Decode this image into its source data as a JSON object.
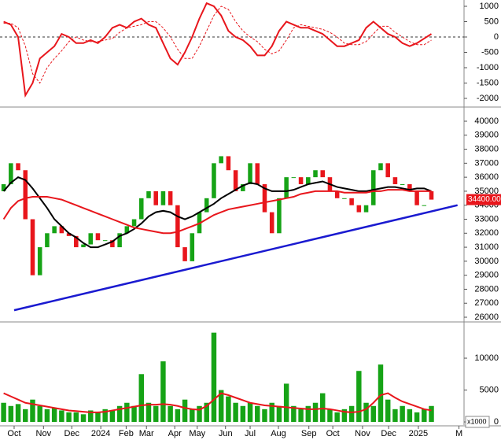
{
  "chart_data": [
    {
      "type": "line",
      "xlim": [
        -0.5,
        63.5
      ],
      "ylim": [
        -2256,
        1205
      ],
      "yticks": [
        1000,
        500,
        0,
        -500,
        -1000,
        -1500,
        -2000
      ],
      "zero_line": true,
      "series": [
        {
          "color": "#e8161c",
          "dash": false,
          "values": [
            500,
            400,
            0,
            -1900,
            -1500,
            -700,
            -500,
            -300,
            100,
            0,
            -200,
            -200,
            -100,
            -200,
            0,
            300,
            400,
            300,
            500,
            600,
            400,
            300,
            -200,
            -700,
            -900,
            -500,
            0,
            600,
            1100,
            1000,
            700,
            200,
            0,
            -100,
            -300,
            -600,
            -600,
            -300,
            200,
            500,
            400,
            300,
            300,
            200,
            100,
            -100,
            -300,
            -300,
            -200,
            -100,
            300,
            500,
            300,
            100,
            0,
            -200,
            -300,
            -200,
            -50,
            100
          ]
        },
        {
          "color": "#e8161c",
          "dash": true,
          "values": [
            450,
            450,
            300,
            -300,
            -1200,
            -1500,
            -1000,
            -700,
            -450,
            -150,
            0,
            -100,
            -150,
            -150,
            -100,
            -50,
            150,
            300,
            350,
            400,
            500,
            500,
            300,
            0,
            -400,
            -700,
            -700,
            -300,
            200,
            700,
            1000,
            900,
            500,
            200,
            0,
            -150,
            -400,
            -550,
            -450,
            -100,
            300,
            400,
            350,
            300,
            250,
            150,
            0,
            -200,
            -250,
            -250,
            -150,
            100,
            350,
            350,
            150,
            0,
            -150,
            -250,
            -250,
            -100
          ]
        }
      ]
    },
    {
      "type": "candlestick",
      "xlim": [
        -0.5,
        63.5
      ],
      "ylim": [
        25720,
        40955
      ],
      "yticks": [
        40000,
        39000,
        38000,
        37000,
        36000,
        35000,
        34000,
        33000,
        32000,
        31000,
        30000,
        29000,
        28000,
        27000,
        26000
      ],
      "up_color": "#16a316",
      "down_color": "#e8161c",
      "open": [
        35000,
        35500,
        37000,
        36500,
        33000,
        29000,
        31000,
        32000,
        32500,
        32000,
        31800,
        31000,
        31200,
        32000,
        31500,
        31500,
        31000,
        32000,
        32500,
        33000,
        34500,
        35000,
        34000,
        35000,
        34000,
        31000,
        30000,
        32000,
        33500,
        34500,
        37000,
        37500,
        36500,
        35000,
        35500,
        37000,
        35500,
        33500,
        32000,
        34500,
        36000,
        36000,
        35500,
        36000,
        36500,
        36000,
        35000,
        34500,
        34500,
        34000,
        33500,
        34000,
        36500,
        37000,
        36000,
        35500,
        35500,
        35000,
        34000,
        35000
      ],
      "close": [
        35500,
        37000,
        36500,
        33000,
        29000,
        31000,
        32000,
        32500,
        32000,
        31800,
        31000,
        31200,
        32000,
        31500,
        31500,
        31000,
        32000,
        32500,
        33000,
        34500,
        35000,
        34000,
        35000,
        34000,
        31000,
        30000,
        32000,
        33500,
        34500,
        37000,
        37500,
        36500,
        35000,
        35500,
        37000,
        35500,
        33500,
        32000,
        34500,
        36000,
        36000,
        35500,
        36000,
        36500,
        36000,
        35000,
        34500,
        34500,
        34000,
        33500,
        34000,
        36500,
        37000,
        36000,
        35500,
        35500,
        35000,
        34000,
        34000,
        34400
      ],
      "series": [
        {
          "color": "#000000",
          "values": [
            35000,
            35600,
            36000,
            35800,
            35200,
            34500,
            33800,
            33000,
            32500,
            32000,
            31700,
            31300,
            31000,
            31000,
            31200,
            31400,
            31800,
            32000,
            32300,
            32700,
            33200,
            33500,
            33600,
            33500,
            33200,
            33000,
            33200,
            33500,
            33800,
            34100,
            34500,
            34800,
            35100,
            35400,
            35600,
            35500,
            35200,
            35000,
            35000,
            35000,
            35100,
            35300,
            35500,
            35600,
            35700,
            35500,
            35300,
            35200,
            35100,
            35000,
            35000,
            35100,
            35200,
            35300,
            35300,
            35200,
            35100,
            35200,
            35200,
            35000
          ]
        },
        {
          "color": "#e8161c",
          "values": [
            33000,
            33800,
            34300,
            34500,
            34600,
            34600,
            34600,
            34500,
            34400,
            34200,
            34000,
            33800,
            33600,
            33400,
            33200,
            33000,
            32800,
            32600,
            32400,
            32300,
            32200,
            32100,
            32000,
            32000,
            32100,
            32300,
            32500,
            32700,
            33000,
            33300,
            33500,
            33700,
            33800,
            33900,
            34000,
            34100,
            34200,
            34300,
            34400,
            34500,
            34600,
            34800,
            34900,
            35000,
            35000,
            35000,
            35000,
            34900,
            34900,
            34900,
            34900,
            35000,
            35000,
            35100,
            35100,
            35100,
            35000,
            35000,
            35000,
            35000
          ]
        }
      ],
      "trendline": {
        "color": "#1a1ad0",
        "x": [
          1.45,
          62.6
        ],
        "values": [
          26500,
          34000
        ]
      },
      "last_label": {
        "value": 34400,
        "label": "34400.00"
      }
    },
    {
      "type": "bar",
      "xlim": [
        -0.5,
        63.5
      ],
      "ylim": [
        -490,
        15560
      ],
      "color": "#16a316",
      "yticks": [
        10000,
        5000,
        0
      ],
      "unit_label": "x1000",
      "values": [
        3000,
        2500,
        2800,
        2000,
        3500,
        2500,
        2000,
        2200,
        1800,
        1500,
        1500,
        1200,
        1800,
        1500,
        2000,
        1800,
        2500,
        3000,
        2500,
        7500,
        3000,
        2500,
        9500,
        2500,
        2000,
        3500,
        2000,
        2500,
        3000,
        14000,
        5000,
        4000,
        3000,
        2500,
        3000,
        2500,
        2000,
        3000,
        2500,
        6000,
        2500,
        2000,
        2500,
        3000,
        4500,
        2000,
        1500,
        2000,
        2500,
        8000,
        3000,
        2500,
        9000,
        3500,
        2000,
        2500,
        2000,
        1500,
        2000,
        2500
      ],
      "series": [
        {
          "color": "#e8161c",
          "values": [
            4500,
            4000,
            3500,
            3000,
            2800,
            2600,
            2400,
            2200,
            2000,
            1800,
            1700,
            1600,
            1500,
            1500,
            1600,
            1800,
            2000,
            2200,
            2400,
            2600,
            2700,
            2700,
            2800,
            2700,
            2500,
            2200,
            2000,
            1900,
            2500,
            3500,
            4500,
            4200,
            3800,
            3400,
            3000,
            2800,
            2600,
            2500,
            2400,
            2300,
            2200,
            2100,
            2000,
            2000,
            2100,
            2000,
            1800,
            1600,
            1500,
            1600,
            2000,
            3000,
            4200,
            4500,
            3800,
            3200,
            2800,
            2400,
            2000,
            1800
          ]
        }
      ],
      "xticks": [
        {
          "value": 1.45,
          "label": "Oct"
        },
        {
          "value": 5.5,
          "label": "Nov"
        },
        {
          "value": 9.4,
          "label": "Dec"
        },
        {
          "value": 13.4,
          "label": "2024"
        },
        {
          "value": 16.9,
          "label": "Feb"
        },
        {
          "value": 19.7,
          "label": "Mar"
        },
        {
          "value": 23.6,
          "label": "Apr"
        },
        {
          "value": 26.7,
          "label": "May"
        },
        {
          "value": 30.6,
          "label": "Jun"
        },
        {
          "value": 34,
          "label": "Jul"
        },
        {
          "value": 37.9,
          "label": "Aug"
        },
        {
          "value": 42.1,
          "label": "Sep"
        },
        {
          "value": 45.4,
          "label": "Oct"
        },
        {
          "value": 49.5,
          "label": "Nov"
        },
        {
          "value": 53.1,
          "label": "Dec"
        },
        {
          "value": 57.2,
          "label": "2025"
        },
        {
          "value": 62.8,
          "label": "M"
        }
      ]
    }
  ]
}
